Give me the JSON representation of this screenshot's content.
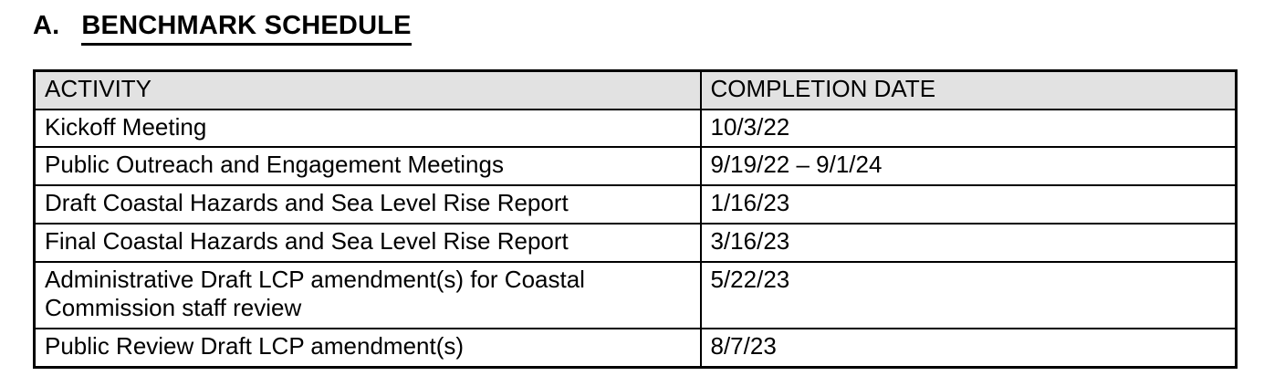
{
  "document": {
    "section_label": "A.",
    "section_title": "BENCHMARK SCHEDULE"
  },
  "table": {
    "columns": [
      {
        "label": "ACTIVITY"
      },
      {
        "label": "COMPLETION DATE"
      }
    ],
    "rows": [
      {
        "activity": "Kickoff Meeting",
        "completion_date": "10/3/22"
      },
      {
        "activity": "Public Outreach and Engagement Meetings",
        "completion_date": "9/19/22 – 9/1/24"
      },
      {
        "activity": "Draft Coastal Hazards and Sea Level Rise Report",
        "completion_date": "1/16/23"
      },
      {
        "activity": "Final Coastal Hazards and Sea Level Rise Report",
        "completion_date": "3/16/23"
      },
      {
        "activity": "Administrative Draft LCP amendment(s) for Coastal Commission staff review",
        "completion_date": "5/22/23"
      },
      {
        "activity": "Public Review Draft LCP amendment(s)",
        "completion_date": "8/7/23"
      }
    ],
    "colors": {
      "header_bg": "#e2e2e2",
      "border": "#000000",
      "text": "#000000"
    }
  }
}
